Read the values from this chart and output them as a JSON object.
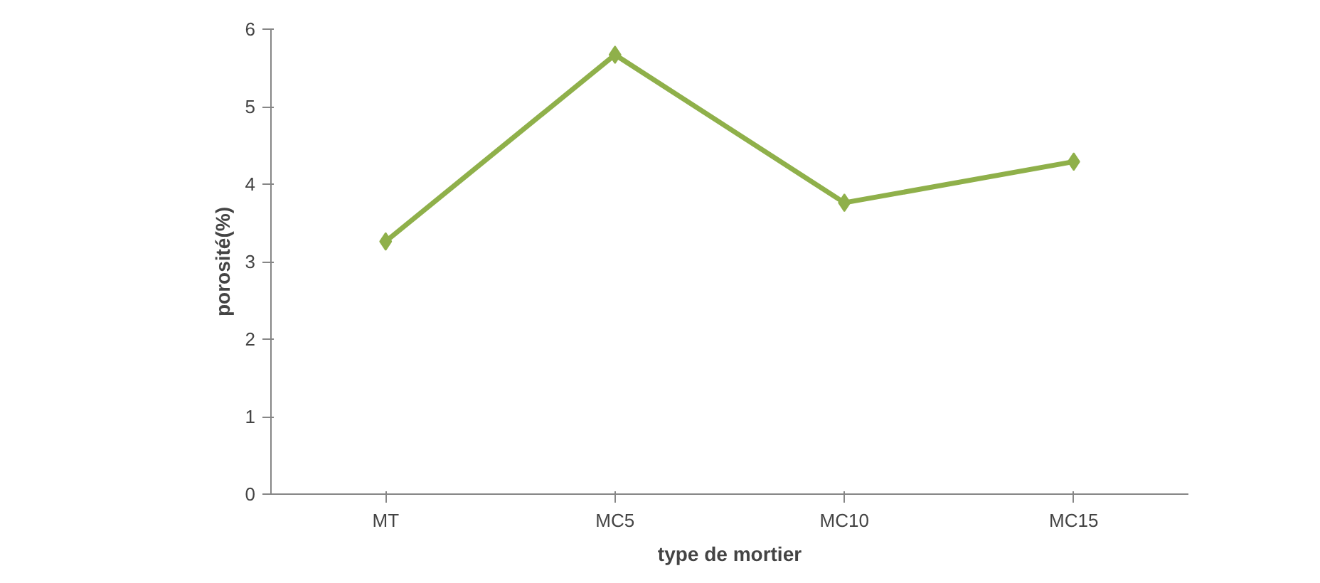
{
  "chart_data": {
    "type": "line",
    "xlabel": "type de mortier",
    "ylabel": "porosité(%)",
    "categories": [
      "MT",
      "MC5",
      "MC10",
      "MC15"
    ],
    "series": [
      {
        "color": "#8fb04a",
        "values": [
          3.26,
          5.67,
          3.76,
          4.29
        ]
      }
    ],
    "ylim": [
      0,
      6
    ],
    "yticks": [
      0,
      1,
      2,
      3,
      4,
      5,
      6
    ],
    "grid": false,
    "marker": "diamond",
    "line_style": "solid"
  }
}
